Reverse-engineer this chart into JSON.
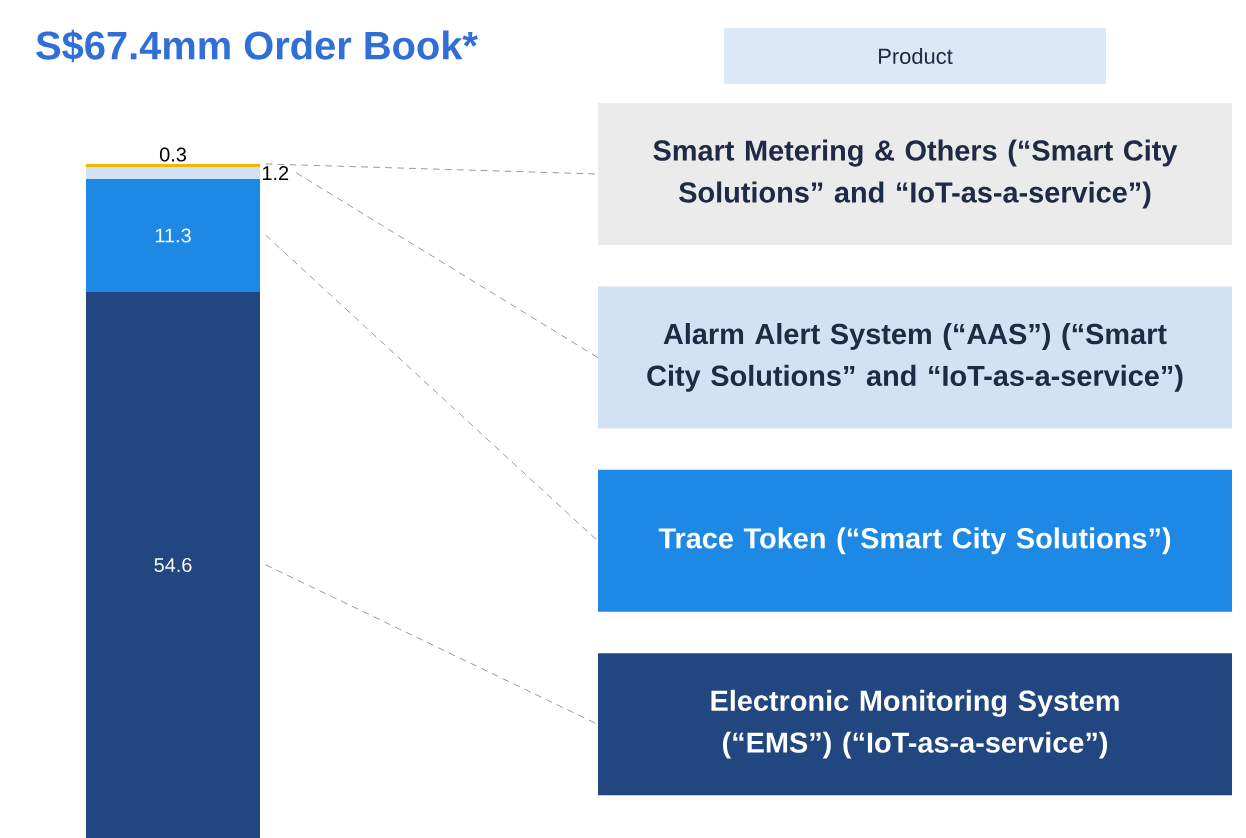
{
  "chart_data": {
    "type": "bar",
    "title": "S$67.4mm Order Book*",
    "legend_title": "Product",
    "categories": [
      null
    ],
    "stacked": true,
    "data_labels": true,
    "legend": "right",
    "series": [
      {
        "name": "Electronic Monitoring System (“EMS”) (“IoT-as-a-service”)",
        "color": "#22467f",
        "values": [
          54.6
        ]
      },
      {
        "name": "Trace Token (“Smart City Solutions”)",
        "color": "#1e88e5",
        "values": [
          11.3
        ]
      },
      {
        "name": "Alarm Alert System (“AAS”) (“Smart City Solutions” and “IoT-as-a-service”)",
        "color": "#d3e1f4",
        "values": [
          1.2
        ]
      },
      {
        "name": "Smart Metering & Others (“Smart City Solutions” and “IoT-as-a-service”)",
        "color": "#f2b705",
        "values": [
          0.3
        ]
      }
    ]
  }
}
